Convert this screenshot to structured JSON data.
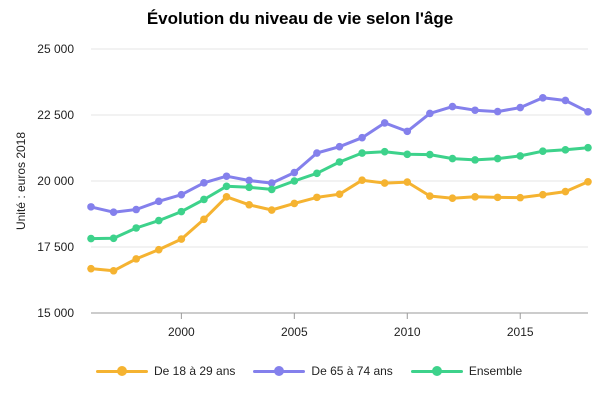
{
  "chart_data": {
    "type": "line",
    "title": "Évolution du niveau de vie selon l'âge",
    "ylabel": "Unité : euros 2018",
    "xlabel": "",
    "xlim": [
      1996,
      2018
    ],
    "ylim": [
      15000,
      25000
    ],
    "x_ticks": [
      2000,
      2005,
      2010,
      2015
    ],
    "y_ticks": [
      15000,
      17500,
      20000,
      22500,
      25000
    ],
    "y_tick_labels": [
      "15 000",
      "17 500",
      "20 000",
      "22 500",
      "25 000"
    ],
    "grid": "horizontal",
    "legend_position": "bottom",
    "x": [
      1996,
      1997,
      1998,
      1999,
      2000,
      2001,
      2002,
      2003,
      2004,
      2005,
      2006,
      2007,
      2008,
      2009,
      2010,
      2011,
      2012,
      2013,
      2014,
      2015,
      2016,
      2017,
      2018
    ],
    "series": [
      {
        "name": "De 18 à 29 ans",
        "color": "#f5b331",
        "values": [
          16680,
          16600,
          17050,
          17400,
          17800,
          18550,
          19400,
          19100,
          18900,
          19150,
          19380,
          19500,
          20030,
          19920,
          19960,
          19430,
          19350,
          19400,
          19380,
          19370,
          19480,
          19600,
          19970
        ]
      },
      {
        "name": "De 65 à 74 ans",
        "color": "#8480ec",
        "values": [
          19020,
          18820,
          18920,
          19230,
          19480,
          19930,
          20180,
          20020,
          19920,
          20320,
          21060,
          21300,
          21640,
          22200,
          21880,
          22560,
          22820,
          22680,
          22630,
          22780,
          23150,
          23050,
          22620
        ]
      },
      {
        "name": "Ensemble",
        "color": "#3dd28b",
        "values": [
          17820,
          17830,
          18220,
          18500,
          18840,
          19300,
          19800,
          19760,
          19680,
          20000,
          20290,
          20720,
          21060,
          21110,
          21010,
          21000,
          20850,
          20800,
          20850,
          20950,
          21130,
          21180,
          21260
        ]
      }
    ]
  }
}
